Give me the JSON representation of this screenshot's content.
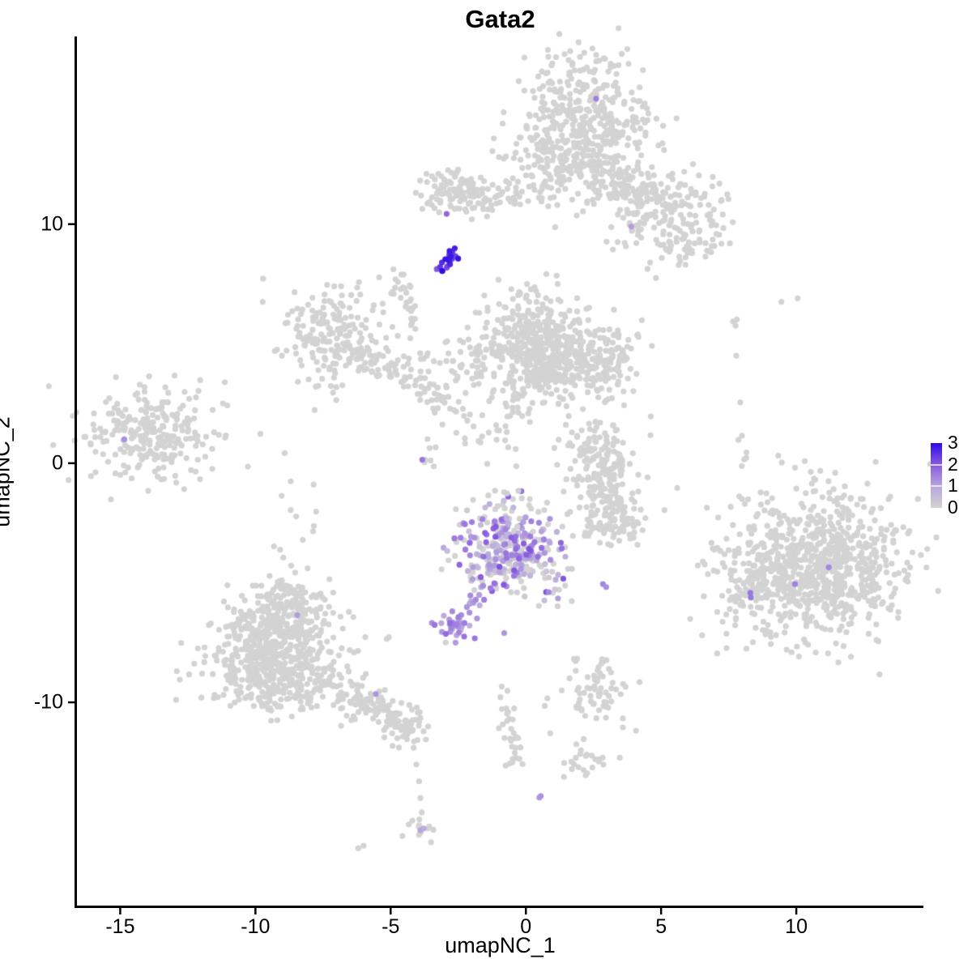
{
  "chart_data": {
    "type": "scatter",
    "title": "Gata2",
    "xlabel": "umapNC_1",
    "ylabel": "umapNC_2",
    "xlim": [
      -16.6,
      14.7
    ],
    "ylim": [
      -18.5,
      17.85
    ],
    "xticks": [
      -15,
      -10,
      -5,
      0,
      5,
      10
    ],
    "yticks": [
      -10,
      0,
      10
    ],
    "grid": false,
    "point_radius": 3.6,
    "seed": 42,
    "legend": {
      "position": "right",
      "ticks": [
        0,
        1,
        2,
        3
      ],
      "vmin": 0,
      "vmax": 3
    },
    "colors": {
      "low": "#D3D3D3",
      "high": "#2D0BE5",
      "ramp": [
        [
          0,
          "#D3D3D3"
        ],
        [
          0.33,
          "#B7A6DE"
        ],
        [
          0.66,
          "#8A5CDF"
        ],
        [
          1,
          "#2D0BE5"
        ]
      ],
      "axis": "#000000",
      "background": "#FFFFFF"
    },
    "clusters": [
      {
        "kind": "gauss",
        "cx": 1.95,
        "cy": 14.3,
        "sx": 1.3,
        "sy": 1.35,
        "n": 430
      },
      {
        "kind": "gauss",
        "cx": 1.8,
        "cy": 12.3,
        "sx": 1.2,
        "sy": 0.65,
        "n": 90
      },
      {
        "kind": "gauss",
        "cx": 4.6,
        "cy": 10.8,
        "sx": 1.05,
        "sy": 0.85,
        "n": 150
      },
      {
        "kind": "line",
        "x1": 2.7,
        "y1": 12.4,
        "x2": 4.2,
        "y2": 11.3,
        "s": 0.4,
        "n": 55
      },
      {
        "kind": "gauss",
        "cx": 5.9,
        "cy": 9.4,
        "sx": 0.8,
        "sy": 0.6,
        "n": 60
      },
      {
        "kind": "gauss",
        "cx": 6.8,
        "cy": 10.6,
        "sx": 0.55,
        "sy": 0.85,
        "n": 22
      },
      {
        "kind": "gauss",
        "cx": -2.35,
        "cy": 11.35,
        "sx": 0.85,
        "sy": 0.55,
        "n": 115
      },
      {
        "kind": "line",
        "x1": -1.2,
        "y1": 11.1,
        "x2": 0.9,
        "y2": 11.3,
        "s": 0.25,
        "n": 32
      },
      {
        "kind": "gauss",
        "cx": -7.25,
        "cy": 5.3,
        "sx": 0.95,
        "sy": 1.0,
        "n": 195
      },
      {
        "kind": "line",
        "x1": -6.3,
        "y1": 4.5,
        "x2": -4.4,
        "y2": 3.6,
        "s": 0.35,
        "n": 55
      },
      {
        "kind": "line",
        "x1": -4.4,
        "y1": 3.6,
        "x2": -2.6,
        "y2": 2.1,
        "s": 0.3,
        "n": 42
      },
      {
        "kind": "line",
        "x1": -2.3,
        "y1": 1.9,
        "x2": -0.9,
        "y2": 0.4,
        "s": 0.35,
        "n": 16
      },
      {
        "kind": "gauss",
        "cx": -4.65,
        "cy": 7.4,
        "sx": 0.3,
        "sy": 0.3,
        "n": 16
      },
      {
        "kind": "line",
        "x1": -4.35,
        "y1": 6.8,
        "x2": -4.1,
        "y2": 5.3,
        "s": 0.12,
        "n": 16
      },
      {
        "kind": "line",
        "x1": -4.0,
        "y1": 4.9,
        "x2": -3.7,
        "y2": 4.2,
        "s": 0.12,
        "n": 5
      },
      {
        "kind": "gauss",
        "cx": 0.35,
        "cy": 5.5,
        "sx": 0.85,
        "sy": 0.85,
        "n": 200
      },
      {
        "kind": "gauss",
        "cx": 1.6,
        "cy": 4.35,
        "sx": 1.15,
        "sy": 0.8,
        "n": 255
      },
      {
        "kind": "gauss",
        "cx": 0.3,
        "cy": 4.2,
        "sx": 0.6,
        "sy": 0.6,
        "n": 80
      },
      {
        "kind": "gauss",
        "cx": 3.1,
        "cy": 4.1,
        "sx": 0.55,
        "sy": 0.6,
        "n": 55
      },
      {
        "kind": "gauss",
        "cx": -1.4,
        "cy": 4.6,
        "sx": 0.5,
        "sy": 0.8,
        "n": 40
      },
      {
        "kind": "gauss",
        "cx": -2.8,
        "cy": 4.2,
        "sx": 0.7,
        "sy": 0.7,
        "n": 26
      },
      {
        "kind": "gauss",
        "cx": 0.2,
        "cy": 6.9,
        "sx": 0.45,
        "sy": 0.4,
        "n": 12
      },
      {
        "kind": "gauss",
        "cx": 0.0,
        "cy": 2.9,
        "sx": 0.8,
        "sy": 0.45,
        "n": 30
      },
      {
        "kind": "line",
        "x1": -0.3,
        "y1": 2.4,
        "x2": -0.7,
        "y2": 0.9,
        "s": 0.3,
        "n": 14
      },
      {
        "kind": "gauss",
        "cx": -3.5,
        "cy": 0.4,
        "sx": 0.3,
        "sy": 0.25,
        "n": 7
      },
      {
        "kind": "gauss",
        "cx": -13.9,
        "cy": 1.25,
        "sx": 1.15,
        "sy": 1.0,
        "n": 235
      },
      {
        "kind": "gauss",
        "cx": -11.9,
        "cy": 1.4,
        "sx": 0.5,
        "sy": 0.7,
        "n": 9
      },
      {
        "kind": "gauss",
        "cx": 2.95,
        "cy": -0.9,
        "sx": 0.7,
        "sy": 1.2,
        "n": 190
      },
      {
        "kind": "gauss",
        "cx": 2.45,
        "cy": 0.8,
        "sx": 0.5,
        "sy": 0.5,
        "n": 45
      },
      {
        "kind": "gauss",
        "cx": 3.3,
        "cy": -2.5,
        "sx": 0.5,
        "sy": 0.45,
        "n": 50
      },
      {
        "kind": "gauss",
        "cx": 10.75,
        "cy": -4.3,
        "sx": 1.7,
        "sy": 1.5,
        "n": 830
      },
      {
        "kind": "gauss",
        "cx": 8.35,
        "cy": -4.9,
        "sx": 0.45,
        "sy": 0.8,
        "n": 65
      },
      {
        "kind": "line",
        "x1": 7.85,
        "y1": 6.6,
        "x2": 8.1,
        "y2": -1.5,
        "s": 0.12,
        "n": 13
      },
      {
        "kind": "gauss",
        "cx": -9.2,
        "cy": -7.5,
        "sx": 1.2,
        "sy": 1.1,
        "n": 480
      },
      {
        "kind": "gauss",
        "cx": -9.3,
        "cy": -9.1,
        "sx": 1.2,
        "sy": 0.65,
        "n": 190
      },
      {
        "kind": "gauss",
        "cx": -8.6,
        "cy": -5.7,
        "sx": 0.6,
        "sy": 0.4,
        "n": 55
      },
      {
        "kind": "line",
        "x1": -7.0,
        "y1": -9.4,
        "x2": -4.9,
        "y2": -10.6,
        "s": 0.35,
        "n": 85
      },
      {
        "kind": "gauss",
        "cx": -4.55,
        "cy": -10.85,
        "sx": 0.5,
        "sy": 0.45,
        "n": 60
      },
      {
        "kind": "gauss",
        "cx": -8.3,
        "cy": -2.3,
        "sx": 0.55,
        "sy": 1.2,
        "n": 14
      },
      {
        "kind": "gauss",
        "cx": 2.15,
        "cy": -12.5,
        "sx": 0.55,
        "sy": 0.35,
        "n": 24
      },
      {
        "kind": "gauss",
        "cx": 2.55,
        "cy": -9.6,
        "sx": 0.8,
        "sy": 0.75,
        "n": 72
      },
      {
        "kind": "line",
        "x1": -0.95,
        "y1": -9.55,
        "x2": -0.35,
        "y2": -12.1,
        "s": 0.18,
        "n": 24
      },
      {
        "kind": "gauss",
        "cx": -0.5,
        "cy": -12.2,
        "sx": 0.28,
        "sy": 0.22,
        "n": 8
      },
      {
        "kind": "gauss",
        "cx": -3.85,
        "cy": -15.25,
        "sx": 0.3,
        "sy": 0.26,
        "n": 13
      },
      {
        "kind": "gauss",
        "cx": -0.5,
        "cy": -3.5,
        "sx": 1.2,
        "sy": 1.05,
        "n": 60
      },
      {
        "kind": "gauss",
        "cx": -0.55,
        "cy": -3.55,
        "sx": 0.95,
        "sy": 0.85,
        "n": 250,
        "vmin": 0,
        "vmax": 2.1,
        "gray_frac": 0.3
      },
      {
        "kind": "line",
        "x1": -1.5,
        "y1": -4.9,
        "x2": -2.05,
        "y2": -6.3,
        "s": 0.15,
        "n": 13,
        "vmin": 0.7,
        "vmax": 1.6
      },
      {
        "kind": "line",
        "x1": 0.8,
        "y1": -4.4,
        "x2": 1.25,
        "y2": -5.7,
        "s": 0.18,
        "n": 13,
        "vmin": 0,
        "vmax": 1.4,
        "gray_frac": 0.35
      },
      {
        "kind": "line",
        "x1": -0.75,
        "y1": -1.3,
        "x2": -0.6,
        "y2": -2.6,
        "s": 0.2,
        "n": 12,
        "vmin": 0,
        "vmax": 1.0,
        "gray_frac": 0.5
      },
      {
        "kind": "gauss",
        "cx": -2.55,
        "cy": -6.75,
        "sx": 0.42,
        "sy": 0.3,
        "n": 40,
        "vmin": 0.4,
        "vmax": 1.8,
        "gray_frac": 0.15
      },
      {
        "kind": "line",
        "x1": -3.15,
        "y1": 8.1,
        "x2": -2.6,
        "y2": 9.0,
        "s": 0.11,
        "n": 24,
        "vmin": 1.9,
        "vmax": 3.0
      }
    ],
    "background_points": [
      [
        -4.25,
        -11.2
      ],
      [
        -4.15,
        -11.9
      ],
      [
        -4.05,
        -12.6
      ],
      [
        -3.95,
        -13.3
      ],
      [
        -3.9,
        -14.0
      ],
      [
        -3.85,
        -14.6
      ],
      [
        -6.2,
        -16.1
      ],
      [
        -6.0,
        -16.0
      ],
      [
        9.45,
        6.75
      ],
      [
        10.05,
        6.9
      ],
      [
        8.1,
        -1.7
      ],
      [
        0.9,
        -11.3
      ],
      [
        -11.2,
        2.5
      ],
      [
        -11.6,
        0.6
      ]
    ],
    "highlight_points": [
      {
        "x": -2.93,
        "y": 10.43,
        "v": 1.8
      },
      {
        "x": 2.6,
        "y": 15.25,
        "v": 1.5
      },
      {
        "x": 3.9,
        "y": 9.9,
        "v": 1.1
      },
      {
        "x": -14.85,
        "y": 1.0,
        "v": 1.3
      },
      {
        "x": -3.83,
        "y": 0.15,
        "v": 1.6
      },
      {
        "x": 11.2,
        "y": -4.35,
        "v": 1.4
      },
      {
        "x": 9.95,
        "y": -5.05,
        "v": 1.5
      },
      {
        "x": 8.3,
        "y": -5.42,
        "v": 1.6
      },
      {
        "x": 8.32,
        "y": -5.62,
        "v": 1.6
      },
      {
        "x": -8.45,
        "y": -6.35,
        "v": 1.1
      },
      {
        "x": -5.55,
        "y": -9.65,
        "v": 1.2
      },
      {
        "x": 2.85,
        "y": -5.05,
        "v": 1.4
      },
      {
        "x": 2.97,
        "y": -5.18,
        "v": 1.3
      },
      {
        "x": -2.6,
        "y": -7.5,
        "v": 1.1
      },
      {
        "x": -0.8,
        "y": -7.1,
        "v": 1.2
      },
      {
        "x": 0.55,
        "y": -13.92,
        "v": 1.3
      },
      {
        "x": 0.5,
        "y": -13.98,
        "v": 1.2
      },
      {
        "x": -3.9,
        "y": -15.35,
        "v": 1.0
      },
      {
        "x": -3.78,
        "y": -15.28,
        "v": 0.9
      }
    ]
  }
}
